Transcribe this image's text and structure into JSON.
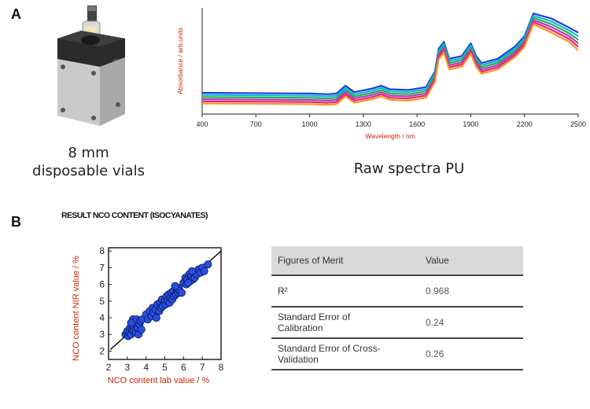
{
  "panel_a": {
    "letter": "A",
    "device_caption_line1": "8 mm",
    "device_caption_line2": "disposable vials",
    "spectra_caption": "Raw spectra PU"
  },
  "panel_b": {
    "letter": "B",
    "title": "RESULT NCO CONTENT (ISOCYANATES)",
    "table": {
      "headers": [
        "Figures of Merit",
        "Value"
      ],
      "rows": [
        {
          "metric": "R²",
          "value": "0.968"
        },
        {
          "metric_line1": "Standard Error of",
          "metric_line2": "Calibration",
          "value": "0.24"
        },
        {
          "metric_line1": "Standard Error of Cross-",
          "metric_line2": "Validation",
          "value": "0.26"
        }
      ]
    }
  },
  "chart_data": [
    {
      "type": "line",
      "xlabel": "Wavelength / nm",
      "ylabel": "Absorbance / arb.units",
      "xlim": [
        400,
        2500
      ],
      "xticks": [
        400,
        700,
        1000,
        1300,
        1600,
        1900,
        2200,
        2500
      ],
      "x": [
        400,
        1000,
        1100,
        1150,
        1200,
        1250,
        1350,
        1400,
        1450,
        1550,
        1650,
        1700,
        1720,
        1750,
        1780,
        1850,
        1900,
        1930,
        1960,
        2050,
        2150,
        2200,
        2250,
        2350,
        2450,
        2500
      ],
      "series": [
        {
          "color": "#1f3fd9",
          "values": [
            0.3,
            0.29,
            0.28,
            0.29,
            0.4,
            0.31,
            0.36,
            0.4,
            0.35,
            0.34,
            0.38,
            0.6,
            0.92,
            1.02,
            0.78,
            0.82,
            1.0,
            0.82,
            0.72,
            0.78,
            0.96,
            1.1,
            1.42,
            1.35,
            1.22,
            1.15
          ]
        },
        {
          "color": "#12b5e0",
          "values": [
            0.27,
            0.26,
            0.25,
            0.26,
            0.37,
            0.28,
            0.33,
            0.37,
            0.32,
            0.31,
            0.35,
            0.57,
            0.89,
            0.99,
            0.75,
            0.79,
            0.97,
            0.79,
            0.69,
            0.75,
            0.93,
            1.07,
            1.39,
            1.31,
            1.18,
            1.1
          ]
        },
        {
          "color": "#22b24c",
          "values": [
            0.24,
            0.23,
            0.22,
            0.23,
            0.34,
            0.25,
            0.3,
            0.34,
            0.29,
            0.28,
            0.32,
            0.54,
            0.86,
            0.96,
            0.72,
            0.76,
            0.94,
            0.76,
            0.66,
            0.72,
            0.9,
            1.04,
            1.36,
            1.27,
            1.14,
            1.05
          ]
        },
        {
          "color": "#b23cc0",
          "values": [
            0.21,
            0.2,
            0.19,
            0.2,
            0.31,
            0.22,
            0.27,
            0.31,
            0.26,
            0.25,
            0.29,
            0.51,
            0.83,
            0.93,
            0.69,
            0.73,
            0.91,
            0.73,
            0.63,
            0.69,
            0.87,
            1.01,
            1.33,
            1.23,
            1.1,
            1.0
          ]
        },
        {
          "color": "#ee2277",
          "values": [
            0.18,
            0.17,
            0.16,
            0.17,
            0.28,
            0.19,
            0.24,
            0.28,
            0.23,
            0.22,
            0.26,
            0.48,
            0.8,
            0.9,
            0.66,
            0.7,
            0.88,
            0.7,
            0.6,
            0.66,
            0.84,
            0.98,
            1.3,
            1.19,
            1.06,
            0.95
          ]
        },
        {
          "color": "#f09a22",
          "values": [
            0.15,
            0.14,
            0.13,
            0.14,
            0.25,
            0.16,
            0.21,
            0.25,
            0.2,
            0.19,
            0.23,
            0.45,
            0.77,
            0.87,
            0.63,
            0.67,
            0.85,
            0.67,
            0.57,
            0.63,
            0.81,
            0.95,
            1.27,
            1.15,
            1.02,
            0.9
          ]
        }
      ],
      "ylim": [
        0,
        1.5
      ]
    },
    {
      "type": "scatter",
      "xlabel": "NCO content lab value / %",
      "ylabel": "NCO content NIR value / %",
      "xlim": [
        2,
        8
      ],
      "ylim": [
        1.5,
        8.2
      ],
      "xticks": [
        2,
        3,
        4,
        5,
        6,
        7,
        8
      ],
      "yticks": [
        2,
        3,
        4,
        5,
        6,
        7,
        8
      ],
      "point_color": "#2a4fe0",
      "fit_line": [
        [
          2.1,
          2.1
        ],
        [
          8,
          8
        ]
      ],
      "points": [
        [
          2.9,
          3.0
        ],
        [
          3.0,
          3.2
        ],
        [
          3.05,
          2.9
        ],
        [
          3.1,
          3.1
        ],
        [
          3.15,
          3.4
        ],
        [
          3.2,
          3.0
        ],
        [
          3.25,
          3.3
        ],
        [
          3.3,
          3.9
        ],
        [
          3.3,
          3.5
        ],
        [
          3.35,
          3.2
        ],
        [
          3.4,
          3.7
        ],
        [
          3.45,
          3.1
        ],
        [
          3.5,
          3.9
        ],
        [
          3.55,
          3.4
        ],
        [
          3.6,
          3.0
        ],
        [
          3.65,
          3.6
        ],
        [
          3.7,
          3.8
        ],
        [
          3.75,
          3.3
        ],
        [
          3.8,
          3.9
        ],
        [
          3.2,
          3.7
        ],
        [
          4.0,
          4.2
        ],
        [
          4.1,
          3.9
        ],
        [
          4.2,
          4.4
        ],
        [
          4.3,
          4.1
        ],
        [
          4.35,
          4.6
        ],
        [
          4.4,
          4.3
        ],
        [
          4.5,
          4.5
        ],
        [
          4.55,
          4.0
        ],
        [
          4.6,
          4.8
        ],
        [
          4.7,
          4.4
        ],
        [
          4.75,
          4.9
        ],
        [
          4.8,
          4.6
        ],
        [
          4.85,
          5.1
        ],
        [
          4.9,
          4.7
        ],
        [
          5.0,
          5.0
        ],
        [
          5.05,
          4.8
        ],
        [
          5.1,
          5.3
        ],
        [
          5.15,
          5.0
        ],
        [
          5.2,
          5.4
        ],
        [
          5.25,
          4.9
        ],
        [
          5.3,
          5.2
        ],
        [
          5.35,
          5.5
        ],
        [
          5.4,
          5.1
        ],
        [
          5.45,
          5.6
        ],
        [
          5.5,
          5.3
        ],
        [
          5.6,
          5.4
        ],
        [
          5.65,
          5.7
        ],
        [
          5.7,
          5.5
        ],
        [
          5.75,
          5.8
        ],
        [
          5.8,
          5.6
        ],
        [
          5.9,
          5.5
        ],
        [
          6.0,
          6.1
        ],
        [
          6.1,
          6.4
        ],
        [
          6.15,
          6.0
        ],
        [
          6.2,
          6.3
        ],
        [
          6.3,
          6.6
        ],
        [
          6.35,
          6.2
        ],
        [
          6.4,
          6.5
        ],
        [
          6.5,
          6.3
        ],
        [
          6.55,
          6.7
        ],
        [
          6.6,
          6.4
        ],
        [
          6.7,
          6.6
        ],
        [
          6.8,
          6.9
        ],
        [
          6.9,
          6.7
        ],
        [
          7.0,
          7.0
        ],
        [
          7.1,
          6.8
        ],
        [
          7.3,
          7.2
        ],
        [
          6.45,
          6.8
        ],
        [
          6.25,
          6.1
        ],
        [
          5.55,
          5.9
        ]
      ]
    }
  ]
}
